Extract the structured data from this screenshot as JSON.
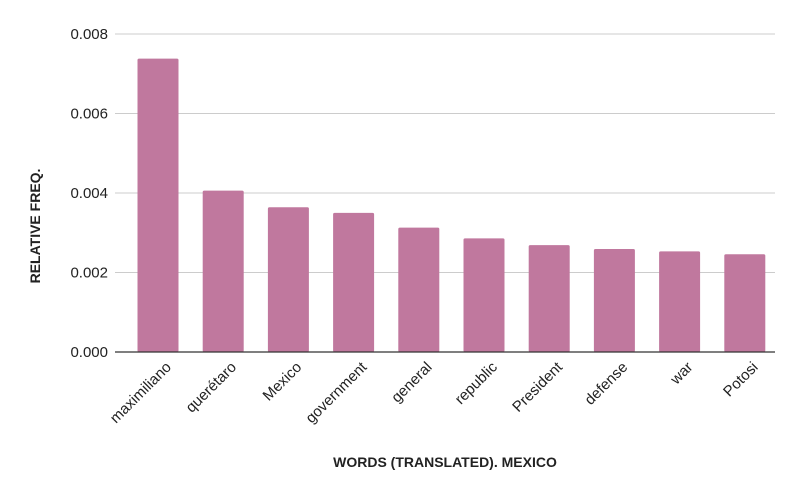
{
  "chart_data": {
    "type": "bar",
    "title": "",
    "xlabel": "WORDS (TRANSLATED). MEXICO",
    "ylabel": "RELATIVE FREQ.",
    "categories": [
      "maximiliano",
      "querétaro",
      "Mexico",
      "government",
      "general",
      "republic",
      "President",
      "defense",
      "war",
      "Potosi"
    ],
    "values": [
      0.00738,
      0.00406,
      0.00364,
      0.0035,
      0.00313,
      0.00286,
      0.00269,
      0.00259,
      0.00253,
      0.00246
    ],
    "ylim": [
      0,
      0.008
    ],
    "yticks": [
      "0.000",
      "0.002",
      "0.004",
      "0.006",
      "0.008"
    ],
    "grid": true,
    "legend": "none",
    "bar_color": "#c0789e"
  }
}
